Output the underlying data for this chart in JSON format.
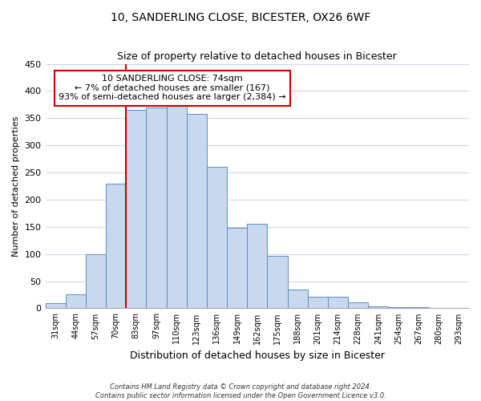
{
  "title": "10, SANDERLING CLOSE, BICESTER, OX26 6WF",
  "subtitle": "Size of property relative to detached houses in Bicester",
  "xlabel": "Distribution of detached houses by size in Bicester",
  "ylabel": "Number of detached properties",
  "bar_labels": [
    "31sqm",
    "44sqm",
    "57sqm",
    "70sqm",
    "83sqm",
    "97sqm",
    "110sqm",
    "123sqm",
    "136sqm",
    "149sqm",
    "162sqm",
    "175sqm",
    "188sqm",
    "201sqm",
    "214sqm",
    "228sqm",
    "241sqm",
    "254sqm",
    "267sqm",
    "280sqm",
    "293sqm"
  ],
  "bar_values": [
    10,
    25,
    100,
    230,
    365,
    370,
    375,
    358,
    260,
    148,
    155,
    96,
    34,
    21,
    21,
    11,
    4,
    2,
    2,
    1,
    1
  ],
  "bar_color": "#c8d8ee",
  "bar_edge_color": "#5b8cc8",
  "ylim": [
    0,
    450
  ],
  "yticks": [
    0,
    50,
    100,
    150,
    200,
    250,
    300,
    350,
    400,
    450
  ],
  "vline_index": 3.5,
  "vline_color": "#cc0000",
  "annotation_title": "10 SANDERLING CLOSE: 74sqm",
  "annotation_line1": "← 7% of detached houses are smaller (167)",
  "annotation_line2": "93% of semi-detached houses are larger (2,384) →",
  "annotation_box_facecolor": "#ffffff",
  "annotation_box_edgecolor": "#cc0000",
  "footer1": "Contains HM Land Registry data © Crown copyright and database right 2024.",
  "footer2": "Contains public sector information licensed under the Open Government Licence v3.0.",
  "fig_facecolor": "#ffffff",
  "axes_facecolor": "#ffffff",
  "grid_color": "#d0d8e8"
}
